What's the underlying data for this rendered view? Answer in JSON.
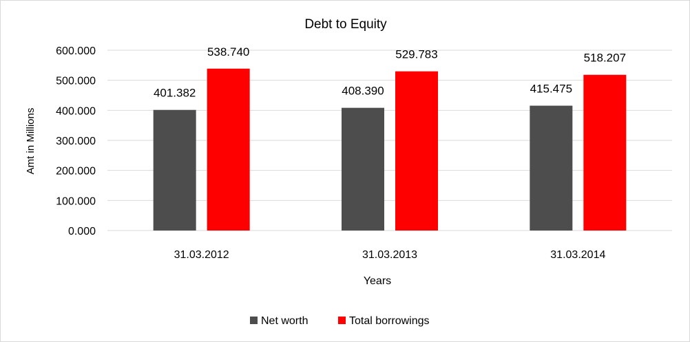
{
  "chart_data": {
    "type": "bar",
    "title": "Debt to Equity",
    "xlabel": "Years",
    "ylabel": "Amt in Millions",
    "categories": [
      "31.03.2012",
      "31.03.2013",
      "31.03.2014"
    ],
    "series": [
      {
        "name": "Net worth",
        "values": [
          401.382,
          408.39,
          415.475
        ],
        "color": "#4d4d4d"
      },
      {
        "name": "Total borrowings",
        "values": [
          538.74,
          529.783,
          518.207
        ],
        "color": "#ff0000"
      }
    ],
    "ylim": [
      0,
      600
    ],
    "yticks": [
      "0.000",
      "100.000",
      "200.000",
      "300.000",
      "400.000",
      "500.000",
      "600.000"
    ],
    "data_labels": [
      [
        "401.382",
        "408.390",
        "415.475"
      ],
      [
        "538.740",
        "529.783",
        "518.207"
      ]
    ],
    "grid": true,
    "legend_position": "bottom"
  }
}
